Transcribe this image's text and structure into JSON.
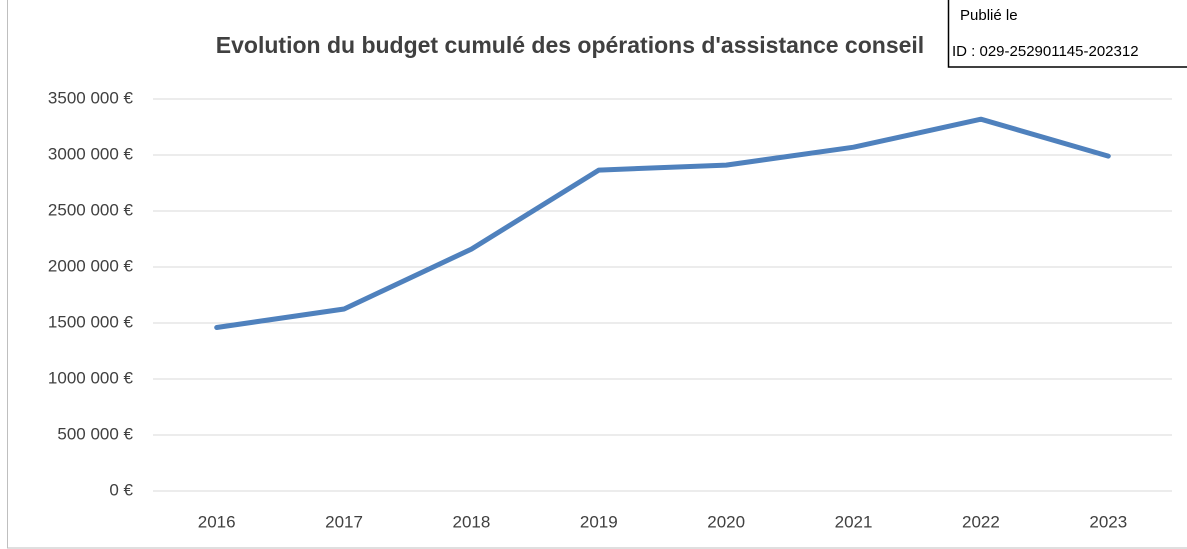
{
  "chart_data": {
    "type": "line",
    "title": "Evolution du budget cumulé des opérations d'assistance conseil",
    "categories": [
      "2016",
      "2017",
      "2018",
      "2019",
      "2020",
      "2021",
      "2022",
      "2023"
    ],
    "values": [
      1460000,
      1625000,
      2160000,
      2865000,
      2910000,
      3070000,
      3320000,
      2990000
    ],
    "color": "#4f81bd",
    "ylim": [
      0,
      3500000
    ],
    "yticks": [
      {
        "value": 0,
        "label": "0 €"
      },
      {
        "value": 500000,
        "label": "500 000 €"
      },
      {
        "value": 1000000,
        "label": "1000 000 €"
      },
      {
        "value": 1500000,
        "label": "1500 000 €"
      },
      {
        "value": 2000000,
        "label": "2000 000 €"
      },
      {
        "value": 2500000,
        "label": "2500 000 €"
      },
      {
        "value": 3000000,
        "label": "3000 000 €"
      },
      {
        "value": 3500000,
        "label": "3500 000 €"
      }
    ],
    "grid": true
  },
  "stamp": {
    "line1": "Publié le",
    "line2": "ID : 029-252901145-202312"
  }
}
